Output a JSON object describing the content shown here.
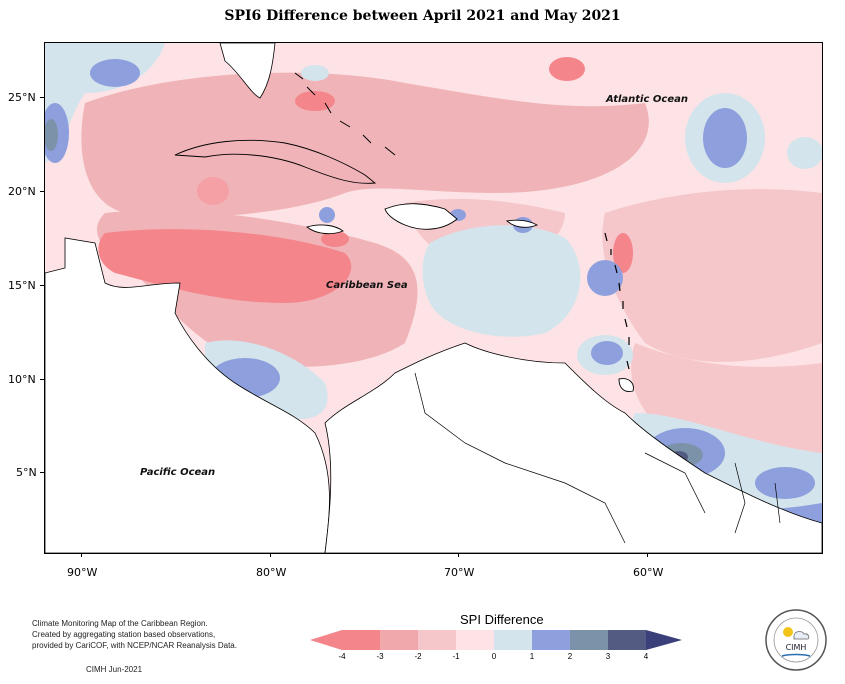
{
  "title": "SPI6 Difference between April 2021 and May 2021",
  "latitude_labels": [
    "25°N",
    "20°N",
    "15°N",
    "10°N",
    "5°N"
  ],
  "longitude_labels": [
    "90°W",
    "80°W",
    "70°W",
    "60°W"
  ],
  "regions": {
    "atlantic": "Atlantic Ocean",
    "caribbean": "Caribbean Sea",
    "pacific": "Pacific Ocean"
  },
  "note": {
    "line1": "Climate Monitoring Map of the Caribbean Region.",
    "line2": "Created by aggregating station based observations,",
    "line3": "provided by CariCOF, with NCEP/NCAR Reanalysis Data.",
    "credit": "CIMH Jun-2021"
  },
  "legend": {
    "title": "SPI Difference",
    "ticks": [
      "-4",
      "-3",
      "-2",
      "-1",
      "0",
      "1",
      "2",
      "3",
      "4"
    ],
    "colors": [
      "#f4858b",
      "#f0a8ac",
      "#f5c7ca",
      "#fde3e5",
      "#d3e4ec",
      "#b3c9da",
      "#8e9fdd",
      "#7a93a9",
      "#545b83"
    ]
  },
  "logo": {
    "name": "CIMH"
  }
}
